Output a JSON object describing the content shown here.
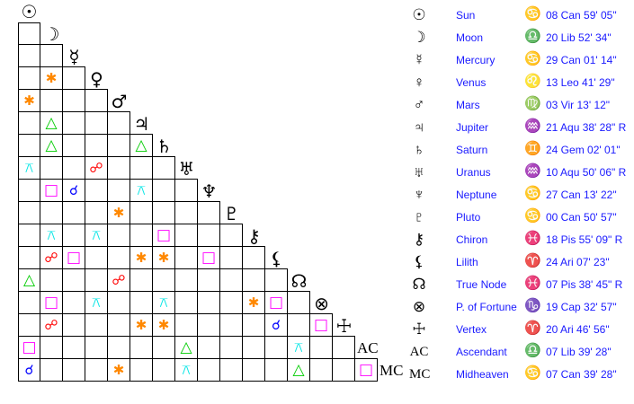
{
  "points": [
    {
      "name": "Sun",
      "glyph": "☉",
      "sign_glyph": "♋",
      "position": "08 Can 59' 05\""
    },
    {
      "name": "Moon",
      "glyph": "☽",
      "sign_glyph": "♎",
      "position": "20 Lib 52' 34\""
    },
    {
      "name": "Mercury",
      "glyph": "☿",
      "sign_glyph": "♋",
      "position": "29 Can 01' 14\""
    },
    {
      "name": "Venus",
      "glyph": "♀",
      "sign_glyph": "♌",
      "position": "13 Leo 41' 29\""
    },
    {
      "name": "Mars",
      "glyph": "♂",
      "sign_glyph": "♍",
      "position": "03 Vir 13' 12\""
    },
    {
      "name": "Jupiter",
      "glyph": "♃",
      "sign_glyph": "♒",
      "position": "21 Aqu 38' 28\" R"
    },
    {
      "name": "Saturn",
      "glyph": "♄",
      "sign_glyph": "♊",
      "position": "24 Gem 02' 01\""
    },
    {
      "name": "Uranus",
      "glyph": "♅",
      "sign_glyph": "♒",
      "position": "10 Aqu 50' 06\" R"
    },
    {
      "name": "Neptune",
      "glyph": "♆",
      "sign_glyph": "♋",
      "position": "27 Can 13' 22\""
    },
    {
      "name": "Pluto",
      "glyph": "♇",
      "sign_glyph": "♋",
      "position": "00 Can 50' 57\""
    },
    {
      "name": "Chiron",
      "glyph": "⚷",
      "sign_glyph": "♓",
      "position": "18 Pis 55' 09\" R"
    },
    {
      "name": "Lilith",
      "glyph": "⚸",
      "sign_glyph": "♈",
      "position": "24 Ari 07' 23\""
    },
    {
      "name": "True Node",
      "glyph": "☊",
      "sign_glyph": "♓",
      "position": "07 Pis 38' 45\" R"
    },
    {
      "name": "P. of Fortune",
      "glyph": "⊗",
      "sign_glyph": "♑",
      "position": "19 Cap 32' 57\""
    },
    {
      "name": "Vertex",
      "glyph": "☩",
      "sign_glyph": "♈",
      "position": "20 Ari 46' 56\""
    },
    {
      "name": "Ascendant",
      "glyph": "AC",
      "sign_glyph": "♎",
      "position": "07 Lib 39' 28\""
    },
    {
      "name": "Midheaven",
      "glyph": "MC",
      "sign_glyph": "♋",
      "position": "07 Can 39' 28\""
    }
  ],
  "aspect_types": {
    "conjunction": {
      "glyph": "☌",
      "color": "#0000ff"
    },
    "opposition": {
      "glyph": "☍",
      "color": "#ff0000"
    },
    "trine": {
      "glyph": "△",
      "color": "#00cc00"
    },
    "square": {
      "glyph": "□",
      "color": "#ff00ff"
    },
    "sextile": {
      "glyph": "✱",
      "color": "#ff8800"
    },
    "quincunx": {
      "glyph": "⚻",
      "color": "#00e5e5"
    }
  },
  "aspects": [
    [
      "Venus",
      "Moon",
      "sextile"
    ],
    [
      "Mars",
      "Sun",
      "sextile"
    ],
    [
      "Jupiter",
      "Moon",
      "trine"
    ],
    [
      "Saturn",
      "Moon",
      "trine"
    ],
    [
      "Saturn",
      "Jupiter",
      "trine"
    ],
    [
      "Uranus",
      "Sun",
      "quincunx"
    ],
    [
      "Uranus",
      "Venus",
      "opposition"
    ],
    [
      "Neptune",
      "Moon",
      "square"
    ],
    [
      "Neptune",
      "Mercury",
      "conjunction"
    ],
    [
      "Neptune",
      "Jupiter",
      "quincunx"
    ],
    [
      "Pluto",
      "Mars",
      "sextile"
    ],
    [
      "Chiron",
      "Moon",
      "quincunx"
    ],
    [
      "Chiron",
      "Venus",
      "quincunx"
    ],
    [
      "Chiron",
      "Saturn",
      "square"
    ],
    [
      "Lilith",
      "Moon",
      "opposition"
    ],
    [
      "Lilith",
      "Mercury",
      "square"
    ],
    [
      "Lilith",
      "Jupiter",
      "sextile"
    ],
    [
      "Lilith",
      "Saturn",
      "sextile"
    ],
    [
      "Lilith",
      "Neptune",
      "square"
    ],
    [
      "True Node",
      "Sun",
      "trine"
    ],
    [
      "True Node",
      "Mars",
      "opposition"
    ],
    [
      "P. of Fortune",
      "Moon",
      "square"
    ],
    [
      "P. of Fortune",
      "Venus",
      "quincunx"
    ],
    [
      "P. of Fortune",
      "Saturn",
      "quincunx"
    ],
    [
      "P. of Fortune",
      "Chiron",
      "sextile"
    ],
    [
      "P. of Fortune",
      "Lilith",
      "square"
    ],
    [
      "Vertex",
      "Moon",
      "opposition"
    ],
    [
      "Vertex",
      "Jupiter",
      "sextile"
    ],
    [
      "Vertex",
      "Saturn",
      "sextile"
    ],
    [
      "Vertex",
      "Lilith",
      "conjunction"
    ],
    [
      "Vertex",
      "P. of Fortune",
      "square"
    ],
    [
      "Ascendant",
      "Sun",
      "square"
    ],
    [
      "Ascendant",
      "Uranus",
      "trine"
    ],
    [
      "Ascendant",
      "True Node",
      "quincunx"
    ],
    [
      "Midheaven",
      "Sun",
      "conjunction"
    ],
    [
      "Midheaven",
      "Mars",
      "sextile"
    ],
    [
      "Midheaven",
      "Uranus",
      "quincunx"
    ],
    [
      "Midheaven",
      "True Node",
      "trine"
    ],
    [
      "Midheaven",
      "Ascendant",
      "square"
    ]
  ]
}
